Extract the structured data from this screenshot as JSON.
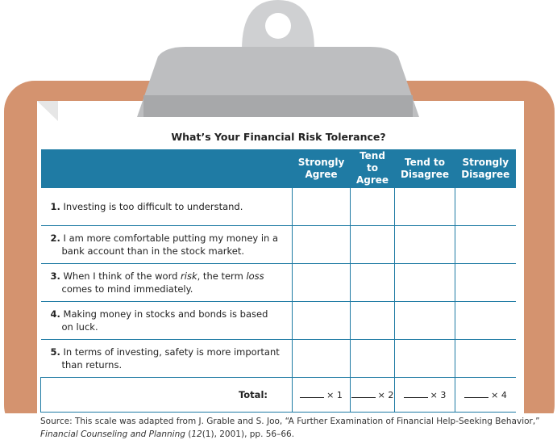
{
  "title": "What’s Your Financial Risk Tolerance?",
  "columns": [
    "Strongly Agree",
    "Tend to Agree",
    "Tend to Disagree",
    "Strongly Disagree"
  ],
  "rows": [
    {
      "number": "1.",
      "parts": [
        {
          "text": "Investing is too difficult to understand."
        }
      ]
    },
    {
      "number": "2.",
      "parts": [
        {
          "text": "I am more comfortable putting my money in a bank account than in the stock market."
        }
      ]
    },
    {
      "number": "3.",
      "parts": [
        {
          "text": "When I think of the word "
        },
        {
          "text": "risk",
          "italic": true
        },
        {
          "text": ", the term "
        },
        {
          "text": "loss",
          "italic": true
        },
        {
          "text": " comes to mind immediately."
        }
      ]
    },
    {
      "number": "4.",
      "parts": [
        {
          "text": "Making money in stocks and bonds is based on luck."
        }
      ]
    },
    {
      "number": "5.",
      "parts": [
        {
          "text": "In terms of investing, safety is more important than returns."
        }
      ]
    }
  ],
  "total_label": "Total:",
  "multipliers": [
    "× 1",
    "× 2",
    "× 3",
    "× 4"
  ],
  "source": [
    {
      "text": "Source: This scale was adapted from J. Grable and S. Joo, “A Further Examination of Financial Help-Seeking Behavior,” "
    },
    {
      "text": "Financial Counseling and Planning",
      "italic": true
    },
    {
      "text": " ("
    },
    {
      "text": "12",
      "italic": true
    },
    {
      "text": "(1), 2001), pp. 56–66."
    }
  ]
}
